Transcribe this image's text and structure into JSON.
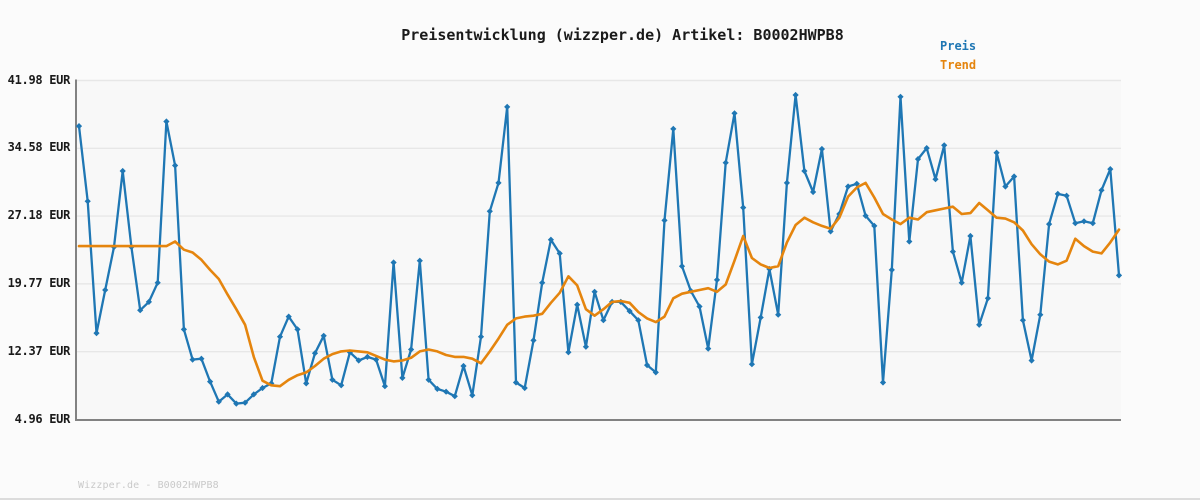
{
  "title": {
    "text": "Preisentwicklung (wizzper.de) Artikel: B0002HWPB8"
  },
  "legend": {
    "position": "top-right",
    "items": [
      {
        "label": "Preis",
        "color": "#1f77b4"
      },
      {
        "label": "Trend",
        "color": "#e5850e"
      }
    ]
  },
  "footer": {
    "text": "Wizzper.de - B0002HWPB8"
  },
  "colors": {
    "price": "#1f77b4",
    "trend": "#e5850e",
    "grid": "#e7e7e7",
    "axis": "#828282",
    "text": "#1a1a1a",
    "footer": "#c9c9c9",
    "plot_bg": "#f8f8f8",
    "page_bg": "#fbfbfb"
  },
  "y_axis": {
    "unit": "EUR",
    "ticks": [
      {
        "label": "41.98 EUR",
        "value": 41.98
      },
      {
        "label": "34.58 EUR",
        "value": 34.58
      },
      {
        "label": "27.18 EUR",
        "value": 27.18
      },
      {
        "label": "19.77 EUR",
        "value": 19.77
      },
      {
        "label": "12.37 EUR",
        "value": 12.37
      },
      {
        "label": "4.96 EUR",
        "value": 4.96
      }
    ]
  },
  "chart_data": {
    "type": "line",
    "title": "Preisentwicklung (wizzper.de) Artikel: B0002HWPB8",
    "xlabel": "",
    "ylabel": "EUR",
    "ylim": [
      4.96,
      41.98
    ],
    "grid": "horizontal-only",
    "legend_position": "top-right",
    "x_count": 120,
    "x_tick_labels": "none",
    "series": [
      {
        "name": "Preis",
        "color": "#1f77b4",
        "marker": "diamond",
        "values": [
          37.0,
          28.8,
          14.4,
          19.1,
          23.8,
          32.1,
          23.8,
          16.9,
          17.8,
          19.9,
          37.5,
          32.7,
          14.8,
          11.5,
          11.6,
          9.1,
          6.9,
          7.7,
          6.7,
          6.8,
          7.7,
          8.4,
          8.9,
          14.0,
          16.2,
          14.8,
          8.9,
          12.2,
          14.1,
          9.3,
          8.7,
          12.3,
          11.4,
          11.8,
          11.5,
          8.6,
          22.1,
          9.5,
          12.6,
          22.3,
          9.3,
          8.3,
          8.0,
          7.5,
          10.8,
          7.6,
          14.0,
          27.7,
          30.8,
          39.1,
          9.0,
          8.4,
          13.6,
          19.9,
          24.6,
          23.1,
          12.3,
          17.5,
          12.9,
          18.9,
          15.8,
          17.8,
          17.8,
          16.8,
          15.8,
          10.9,
          10.1,
          26.7,
          36.7,
          21.7,
          19.0,
          17.3,
          12.7,
          20.2,
          33.0,
          38.4,
          28.1,
          11.0,
          16.1,
          21.4,
          16.4,
          30.8,
          40.4,
          32.1,
          29.8,
          34.5,
          25.5,
          27.4,
          30.4,
          30.7,
          27.2,
          26.1,
          9.0,
          21.3,
          40.2,
          24.4,
          33.4,
          34.6,
          31.2,
          34.9,
          23.3,
          19.9,
          25.0,
          15.3,
          18.2,
          34.1,
          30.4,
          31.5,
          15.8,
          11.4,
          16.4,
          26.3,
          29.6,
          29.4,
          26.4,
          26.6,
          26.4,
          30.0,
          32.3,
          20.7
        ]
      },
      {
        "name": "Trend",
        "color": "#e5850e",
        "marker": "none",
        "values": [
          23.9,
          23.9,
          23.9,
          23.9,
          23.9,
          23.9,
          23.9,
          23.9,
          23.9,
          23.9,
          23.9,
          24.4,
          23.5,
          23.2,
          22.4,
          21.3,
          20.3,
          18.6,
          17.0,
          15.3,
          11.8,
          9.2,
          8.7,
          8.6,
          9.3,
          9.8,
          10.1,
          10.8,
          11.6,
          12.1,
          12.4,
          12.5,
          12.4,
          12.3,
          11.9,
          11.5,
          11.3,
          11.4,
          11.7,
          12.4,
          12.6,
          12.4,
          12.0,
          11.8,
          11.8,
          11.6,
          11.1,
          12.4,
          13.8,
          15.3,
          16.0,
          16.2,
          16.3,
          16.5,
          17.7,
          18.8,
          20.6,
          19.6,
          17.0,
          16.3,
          17.0,
          17.8,
          17.9,
          17.7,
          16.7,
          16.0,
          15.6,
          16.2,
          18.2,
          18.7,
          18.9,
          19.1,
          19.3,
          18.9,
          19.7,
          22.3,
          25.0,
          22.6,
          21.9,
          21.5,
          21.7,
          24.3,
          26.2,
          27.0,
          26.5,
          26.1,
          25.8,
          27.0,
          29.3,
          30.3,
          30.8,
          29.2,
          27.4,
          26.8,
          26.3,
          27.0,
          26.8,
          27.6,
          27.8,
          28.0,
          28.2,
          27.4,
          27.5,
          28.6,
          27.8,
          27.0,
          26.9,
          26.5,
          25.6,
          24.1,
          23.0,
          22.2,
          21.9,
          22.3,
          24.7,
          23.9,
          23.3,
          23.1,
          24.3,
          25.7
        ]
      }
    ]
  }
}
